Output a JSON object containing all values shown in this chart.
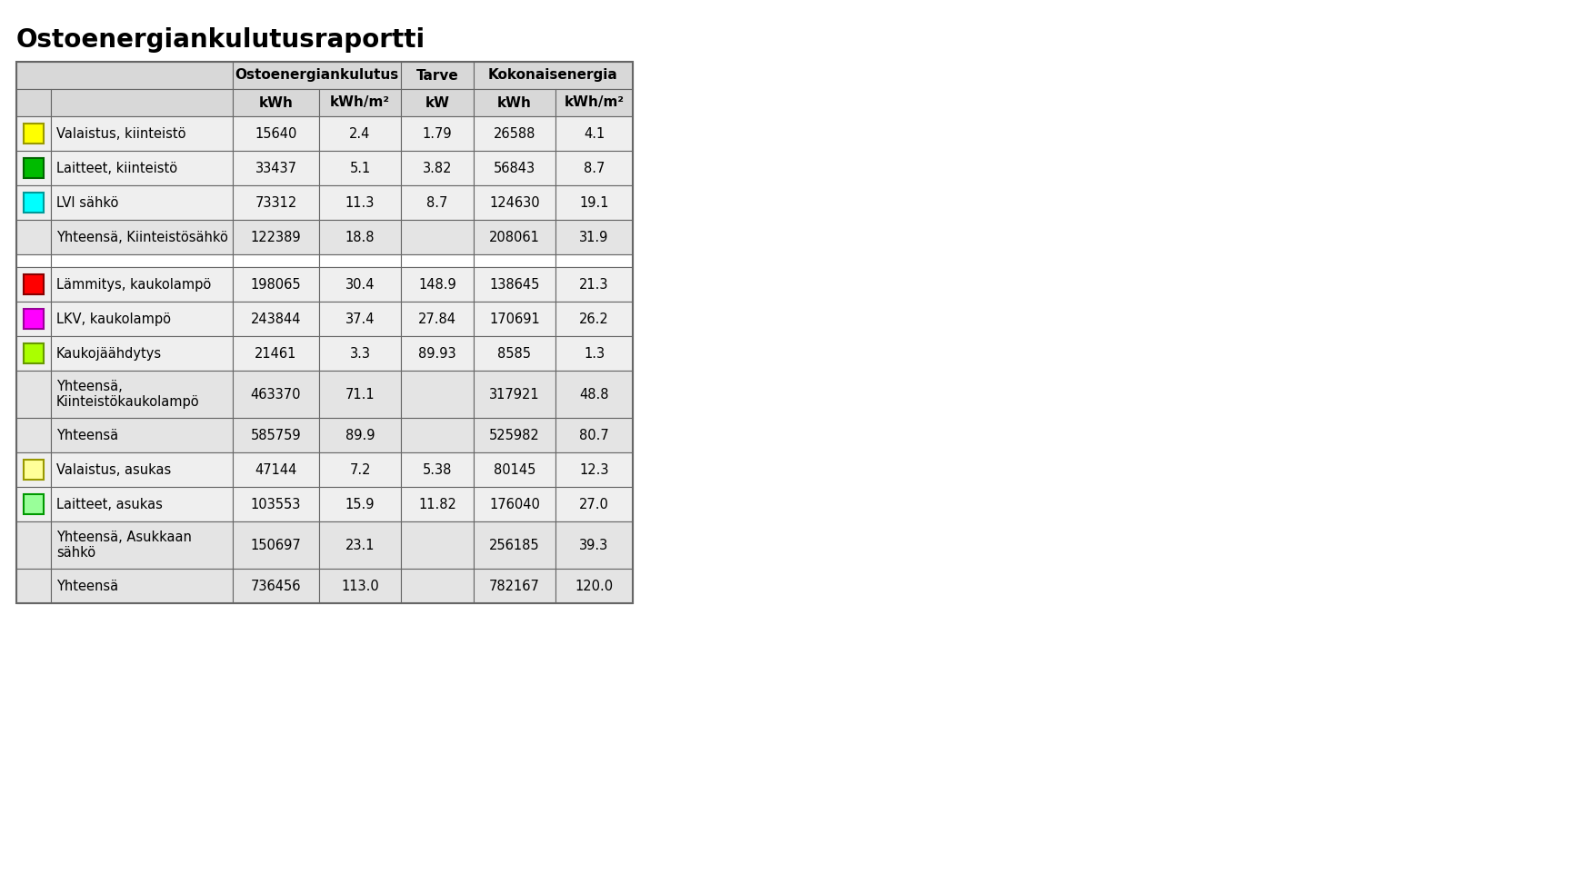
{
  "title": "Ostoenergiankulutusraportti",
  "rows": [
    {
      "label": "Valaistus, kiinteistö",
      "color": "#FFFF00",
      "color_border": "#999900",
      "kwh": "15640",
      "kwh_m2": "2.4",
      "kw": "1.79",
      "tot_kwh": "26588",
      "tot_kwh_m2": "4.1",
      "has_icon": true,
      "summary": false,
      "empty": false
    },
    {
      "label": "Laitteet, kiinteistö",
      "color": "#00BB00",
      "color_border": "#006600",
      "kwh": "33437",
      "kwh_m2": "5.1",
      "kw": "3.82",
      "tot_kwh": "56843",
      "tot_kwh_m2": "8.7",
      "has_icon": true,
      "summary": false,
      "empty": false
    },
    {
      "label": "LVI sähkö",
      "color": "#00FFFF",
      "color_border": "#009999",
      "kwh": "73312",
      "kwh_m2": "11.3",
      "kw": "8.7",
      "tot_kwh": "124630",
      "tot_kwh_m2": "19.1",
      "has_icon": true,
      "summary": false,
      "empty": false
    },
    {
      "label": "Yhteensä, Kiinteistösähkö",
      "color": null,
      "color_border": null,
      "kwh": "122389",
      "kwh_m2": "18.8",
      "kw": "",
      "tot_kwh": "208061",
      "tot_kwh_m2": "31.9",
      "has_icon": false,
      "summary": true,
      "empty": false
    },
    {
      "label": "",
      "color": null,
      "color_border": null,
      "kwh": "",
      "kwh_m2": "",
      "kw": "",
      "tot_kwh": "",
      "tot_kwh_m2": "",
      "has_icon": false,
      "summary": false,
      "empty": true
    },
    {
      "label": "Lämmitys, kaukolampö",
      "color": "#FF0000",
      "color_border": "#880000",
      "kwh": "198065",
      "kwh_m2": "30.4",
      "kw": "148.9",
      "tot_kwh": "138645",
      "tot_kwh_m2": "21.3",
      "has_icon": true,
      "summary": false,
      "empty": false
    },
    {
      "label": "LKV, kaukolampö",
      "color": "#FF00FF",
      "color_border": "#990099",
      "kwh": "243844",
      "kwh_m2": "37.4",
      "kw": "27.84",
      "tot_kwh": "170691",
      "tot_kwh_m2": "26.2",
      "has_icon": true,
      "summary": false,
      "empty": false
    },
    {
      "label": "Kaukojäähdytys",
      "color": "#AAFF00",
      "color_border": "#669900",
      "kwh": "21461",
      "kwh_m2": "3.3",
      "kw": "89.93",
      "tot_kwh": "8585",
      "tot_kwh_m2": "1.3",
      "has_icon": true,
      "summary": false,
      "empty": false
    },
    {
      "label": "Yhteensä,\nKiinteistökaukolampö",
      "color": null,
      "color_border": null,
      "kwh": "463370",
      "kwh_m2": "71.1",
      "kw": "",
      "tot_kwh": "317921",
      "tot_kwh_m2": "48.8",
      "has_icon": false,
      "summary": true,
      "empty": false
    },
    {
      "label": "Yhteensä",
      "color": null,
      "color_border": null,
      "kwh": "585759",
      "kwh_m2": "89.9",
      "kw": "",
      "tot_kwh": "525982",
      "tot_kwh_m2": "80.7",
      "has_icon": false,
      "summary": true,
      "empty": false
    },
    {
      "label": "Valaistus, asukas",
      "color": "#FFFF99",
      "color_border": "#999900",
      "kwh": "47144",
      "kwh_m2": "7.2",
      "kw": "5.38",
      "tot_kwh": "80145",
      "tot_kwh_m2": "12.3",
      "has_icon": true,
      "summary": false,
      "empty": false
    },
    {
      "label": "Laitteet, asukas",
      "color": "#99FF99",
      "color_border": "#009900",
      "kwh": "103553",
      "kwh_m2": "15.9",
      "kw": "11.82",
      "tot_kwh": "176040",
      "tot_kwh_m2": "27.0",
      "has_icon": true,
      "summary": false,
      "empty": false
    },
    {
      "label": "Yhteensä, Asukkaan\nsähkö",
      "color": null,
      "color_border": null,
      "kwh": "150697",
      "kwh_m2": "23.1",
      "kw": "",
      "tot_kwh": "256185",
      "tot_kwh_m2": "39.3",
      "has_icon": false,
      "summary": true,
      "empty": false
    },
    {
      "label": "Yhteensä",
      "color": null,
      "color_border": null,
      "kwh": "736456",
      "kwh_m2": "113.0",
      "kw": "",
      "tot_kwh": "782167",
      "tot_kwh_m2": "120.0",
      "has_icon": false,
      "summary": true,
      "empty": false
    }
  ],
  "bg_color": "#ffffff",
  "header_bg": "#d8d8d8",
  "data_bg_light": "#efefef",
  "data_bg_white": "#ffffff",
  "summary_bg": "#e4e4e4",
  "border_color": "#666666",
  "title_fontsize": 20,
  "header_fontsize": 11,
  "data_fontsize": 10.5
}
